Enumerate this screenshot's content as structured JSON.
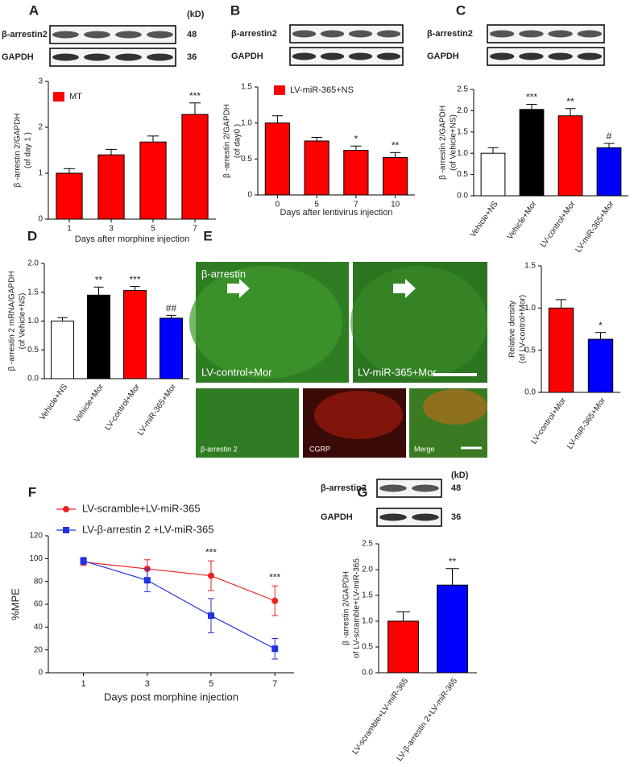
{
  "chart_data": [
    {
      "type": "bar",
      "panel": "A",
      "blot": {
        "rows": [
          "β-arrestin2",
          "GAPDH"
        ],
        "kd_header": "(kD)",
        "kd": [
          "48",
          "36"
        ]
      },
      "ylabel": [
        "β -arrestin 2/GAPDH",
        "(of day 1 )"
      ],
      "xlabel": "Days after morphine injection",
      "categories": [
        "1",
        "3",
        "5",
        "7"
      ],
      "series": [
        {
          "name": "MT",
          "color": "#ff0000",
          "values": [
            1.0,
            1.4,
            1.68,
            2.28
          ],
          "errors": [
            0.1,
            0.12,
            0.13,
            0.25
          ],
          "significance": [
            null,
            null,
            null,
            "***"
          ]
        }
      ],
      "ylim": [
        0,
        3
      ],
      "yticks": [
        0,
        1,
        2,
        3
      ]
    },
    {
      "type": "bar",
      "panel": "B",
      "blot": {
        "rows": [
          "β-arrestin2",
          "GAPDH"
        ]
      },
      "ylabel": [
        "β -arrestin 2/GAPDH",
        "(of day0 )"
      ],
      "xlabel": "Days after lentivirus injection",
      "categories": [
        "0",
        "5",
        "7",
        "10"
      ],
      "series": [
        {
          "name": "LV-miR-365+NS",
          "color": "#ff0000",
          "values": [
            1.0,
            0.75,
            0.62,
            0.52
          ],
          "errors": [
            0.1,
            0.05,
            0.06,
            0.07
          ],
          "significance": [
            null,
            null,
            "*",
            "**"
          ]
        }
      ],
      "ylim": [
        0,
        1.5
      ],
      "yticks": [
        0,
        {
          "value": 0.5,
          "label": "0.5"
        },
        {
          "value": 1,
          "label": "1.0"
        },
        1.5
      ]
    },
    {
      "type": "bar",
      "panel": "C",
      "blot": {
        "rows": [
          "β-arrestin2",
          "GAPDH"
        ]
      },
      "ylabel": [
        "β -arrestin 2/GAPDH",
        "(of Vehicle+NS)"
      ],
      "categories": [
        "Vehicle+NS",
        "Vehicle+Mor",
        "LV-control+Mor",
        "LV-miR-365+Mor"
      ],
      "values": [
        1.0,
        2.03,
        1.88,
        1.13
      ],
      "errors": [
        0.13,
        0.12,
        0.17,
        0.1
      ],
      "significance": [
        null,
        "***",
        "**",
        "#"
      ],
      "colors": [
        "#ffffff",
        "#000000",
        "#ff0000",
        "#0000ff"
      ],
      "ylim": [
        0,
        2.5
      ],
      "yticks": [
        {
          "value": 0,
          "label": "0.0"
        },
        0.5,
        {
          "value": 1,
          "label": "1.0"
        },
        1.5,
        {
          "value": 2,
          "label": "2.0"
        },
        2.5
      ]
    },
    {
      "type": "bar",
      "panel": "D",
      "ylabel": [
        "β -arrestin 2 mRNA/GAPDH",
        "(of Vehicle+NS)"
      ],
      "categories": [
        "Vehicle+NS",
        "Vehicle+Mor",
        "LV-control+Mor",
        "LV-miR-365+Mor"
      ],
      "values": [
        1.0,
        1.45,
        1.53,
        1.05
      ],
      "errors": [
        0.06,
        0.14,
        0.07,
        0.05
      ],
      "significance": [
        null,
        "**",
        "***",
        "##"
      ],
      "colors": [
        "#ffffff",
        "#000000",
        "#ff0000",
        "#0000ff"
      ],
      "ylim": [
        0,
        2
      ],
      "yticks": [
        {
          "value": 0,
          "label": "0.0"
        },
        0.5,
        {
          "value": 1,
          "label": "1.0"
        },
        1.5,
        {
          "value": 2,
          "label": "2.0"
        }
      ]
    },
    {
      "type": "bar",
      "panel": "E",
      "image_labels": [
        "β-arrestin",
        "LV-control+Mor",
        "LV-miR-365+Mor",
        "β-arrestin 2",
        "CGRP",
        "Merge"
      ],
      "ylabel": [
        "Relative density",
        "(of LV-control+Mor)"
      ],
      "categories": [
        "LV-control+Mor",
        "LV-miR-365+Mor"
      ],
      "values": [
        1.0,
        0.63
      ],
      "errors": [
        0.1,
        0.08
      ],
      "significance": [
        null,
        "*"
      ],
      "colors": [
        "#ff0000",
        "#0000ff"
      ],
      "ylim": [
        0,
        1.5
      ],
      "yticks": [
        {
          "value": 0,
          "label": "0.0"
        },
        0.5,
        {
          "value": 1,
          "label": "1.0"
        },
        1.5
      ]
    },
    {
      "type": "line",
      "panel": "F",
      "ylabel": [
        "%MPE"
      ],
      "xlabel": "Days post morphine  injection",
      "x": [
        1,
        3,
        5,
        7
      ],
      "series": [
        {
          "name": "LV-scramble+LV-miR-365",
          "color": "#ee2222",
          "marker": "circle",
          "values": [
            97,
            91,
            85,
            63
          ],
          "errors": [
            3,
            8,
            13,
            13
          ]
        },
        {
          "name": "LV-β-arrestin 2 +LV-miR-365",
          "color": "#2233dd",
          "marker": "square",
          "values": [
            98,
            81,
            50,
            21
          ],
          "errors": [
            3,
            10,
            15,
            9
          ]
        }
      ],
      "annotations": [
        {
          "x": 5,
          "text": "***"
        },
        {
          "x": 7,
          "text": "***"
        }
      ],
      "xlim": [
        -0.1,
        7.6
      ],
      "xticks": [
        1,
        3,
        5,
        7
      ],
      "ylim": [
        0,
        120
      ],
      "yticks": [
        0,
        20,
        40,
        60,
        80,
        100,
        120
      ]
    },
    {
      "type": "bar",
      "panel": "G",
      "blot": {
        "rows": [
          "β-arrestin2",
          "GAPDH"
        ],
        "kd_header": "(kD)",
        "kd": [
          "48",
          "36"
        ]
      },
      "ylabel": [
        "β -arrestin 2/GAPDH",
        "of LV-scramble+LV-miR-365"
      ],
      "categories": [
        "LV-scramble+LV-miR-365",
        "LV-β-arrestin 2+LV-miR-365"
      ],
      "values": [
        1.0,
        1.7
      ],
      "errors": [
        0.18,
        0.32
      ],
      "significance": [
        null,
        "**"
      ],
      "colors": [
        "#ff0000",
        "#0000ff"
      ],
      "ylim": [
        0,
        2.5
      ],
      "yticks": [
        {
          "value": 0,
          "label": "0.0"
        },
        0.5,
        {
          "value": 1,
          "label": "1.0"
        },
        1.5,
        {
          "value": 2,
          "label": "2.0"
        },
        2.5
      ]
    }
  ]
}
